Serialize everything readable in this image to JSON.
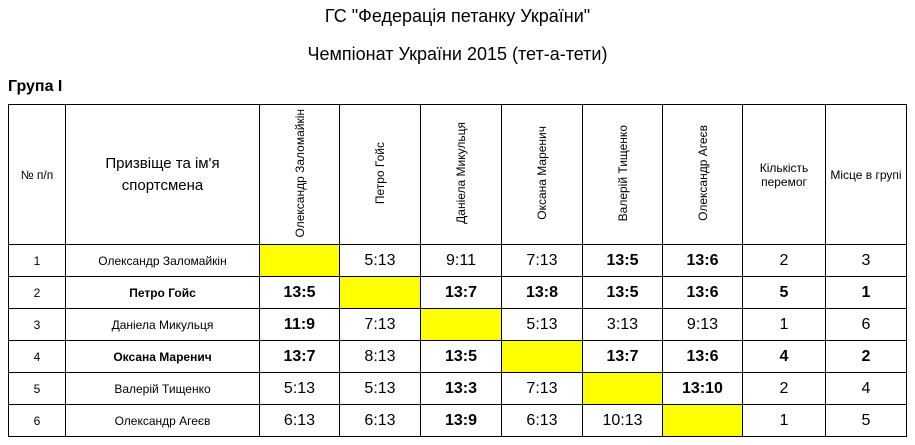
{
  "header": {
    "title": "ГС \"Федерація петанку України\"",
    "subtitle": "Чемпіонат України 2015 (тет-а-тети)"
  },
  "group": "Група І",
  "table": {
    "columns": [
      "№ п/п",
      "Призвіще та ім'я спортсмена",
      "Олександр Заломайкін",
      "Петро Гойс",
      "Даніела Микульця",
      "Оксана Маренич",
      "Валерій Тищенко",
      "Олександр Агеєв",
      "Кількість перемог",
      "Місце в групі"
    ],
    "rows": [
      {
        "number": 1,
        "name": "Олександр Заломайкін",
        "results": [
          null,
          "5:13",
          "9:11",
          "7:13",
          "13:5",
          "13:6"
        ],
        "wins": 2,
        "place": 3,
        "highlight": false
      },
      {
        "number": 2,
        "name": "Петро Гойс",
        "results": [
          "13:5",
          null,
          "13:7",
          "13:8",
          "13:5",
          "13:6"
        ],
        "wins": 5,
        "place": 1,
        "highlight": true
      },
      {
        "number": 3,
        "name": "Даніела Микульця",
        "results": [
          "11:9",
          "7:13",
          null,
          "5:13",
          "3:13",
          "9:13"
        ],
        "wins": 1,
        "place": 6,
        "highlight": false
      },
      {
        "number": 4,
        "name": "Оксана Маренич",
        "results": [
          "13:7",
          "8:13",
          "13:5",
          null,
          "13:7",
          "13:6"
        ],
        "wins": 4,
        "place": 2,
        "highlight": true
      },
      {
        "number": 5,
        "name": "Валерій Тищенко",
        "results": [
          "5:13",
          "5:13",
          "13:3",
          "7:13",
          null,
          "13:10"
        ],
        "wins": 2,
        "place": 4,
        "highlight": false
      },
      {
        "number": 6,
        "name": "Олександр Агеєв",
        "results": [
          "6:13",
          "6:13",
          "13:9",
          "6:13",
          "10:13",
          null
        ],
        "wins": 1,
        "place": 5,
        "highlight": false
      }
    ]
  }
}
